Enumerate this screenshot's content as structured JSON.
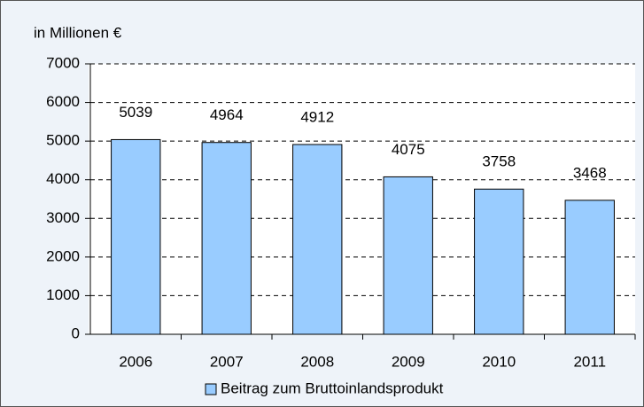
{
  "chart_data": {
    "type": "bar",
    "ylabel": "in Millionen €",
    "categories": [
      "2006",
      "2007",
      "2008",
      "2009",
      "2010",
      "2011"
    ],
    "series": [
      {
        "name": "Beitrag zum Bruttoinlandsprodukt",
        "color": "#99ccff",
        "values": [
          5039,
          4964,
          4912,
          4075,
          3758,
          3468
        ]
      }
    ],
    "ylim": [
      0,
      7000
    ],
    "yticks": [
      0,
      1000,
      2000,
      3000,
      4000,
      5000,
      6000,
      7000
    ],
    "grid": true,
    "legend": "bottom"
  }
}
